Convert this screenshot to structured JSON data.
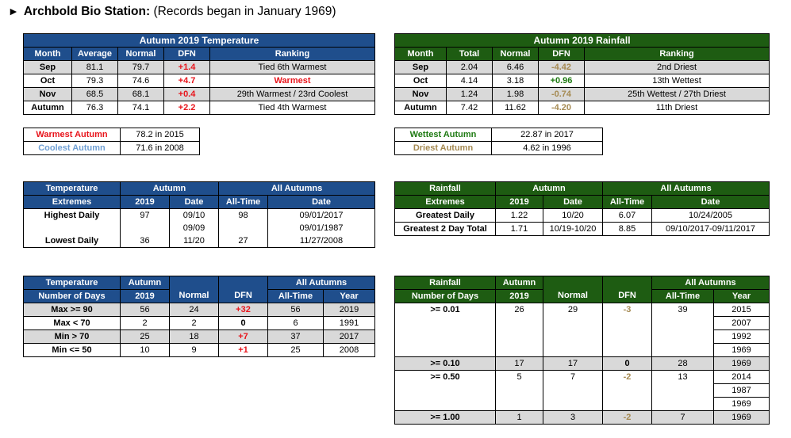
{
  "title": {
    "arrow": "►",
    "station": "Archbold Bio Station:",
    "note": "(Records began in January 1969)"
  },
  "temp_table": {
    "title": "Autumn 2019 Temperature",
    "headers": [
      "Month",
      "Average",
      "Normal",
      "DFN",
      "Ranking"
    ],
    "rows": [
      {
        "month": "Sep",
        "average": "81.1",
        "normal": "79.7",
        "dfn": "+1.4",
        "ranking": "Tied 6th Warmest"
      },
      {
        "month": "Oct",
        "average": "79.3",
        "normal": "74.6",
        "dfn": "+4.7",
        "ranking": "Warmest"
      },
      {
        "month": "Nov",
        "average": "68.5",
        "normal": "68.1",
        "dfn": "+0.4",
        "ranking": "29th Warmest / 23rd Coolest"
      },
      {
        "month": "Autumn",
        "average": "76.3",
        "normal": "74.1",
        "dfn": "+2.2",
        "ranking": "Tied 4th Warmest"
      }
    ]
  },
  "rain_table": {
    "title": "Autumn 2019 Rainfall",
    "headers": [
      "Month",
      "Total",
      "Normal",
      "DFN",
      "Ranking"
    ],
    "rows": [
      {
        "month": "Sep",
        "total": "2.04",
        "normal": "6.46",
        "dfn": "-4.42",
        "ranking": "2nd Driest"
      },
      {
        "month": "Oct",
        "total": "4.14",
        "normal": "3.18",
        "dfn": "+0.96",
        "ranking": "13th Wettest"
      },
      {
        "month": "Nov",
        "total": "1.24",
        "normal": "1.98",
        "dfn": "-0.74",
        "ranking": "25th Wettest / 27th Driest"
      },
      {
        "month": "Autumn",
        "total": "7.42",
        "normal": "11.62",
        "dfn": "-4.20",
        "ranking": "11th Driest"
      }
    ]
  },
  "temp_records": {
    "warmest_label": "Warmest Autumn",
    "warmest_value": "78.2 in 2015",
    "coolest_label": "Coolest Autumn",
    "coolest_value": "71.6 in 2008"
  },
  "rain_records": {
    "wettest_label": "Wettest Autumn",
    "wettest_value": "22.87 in 2017",
    "driest_label": "Driest Autumn",
    "driest_value": "4.62 in 1996"
  },
  "temp_extremes": {
    "h1": "Temperature",
    "h2": "Extremes",
    "autumn": "Autumn",
    "all_autumns": "All Autumns",
    "col_2019": "2019",
    "col_date": "Date",
    "col_alltime": "All-Time",
    "col_date2": "Date",
    "highest_label": "Highest Daily",
    "highest": {
      "val": "97",
      "date1": "09/10",
      "date2": "09/09",
      "alltime": "98",
      "ad1": "09/01/2017",
      "ad2": "09/01/1987"
    },
    "lowest_label": "Lowest Daily",
    "lowest": {
      "val": "36",
      "date": "11/20",
      "alltime": "27",
      "ad": "11/27/2008"
    }
  },
  "rain_extremes": {
    "h1": "Rainfall",
    "h2": "Extremes",
    "autumn": "Autumn",
    "all_autumns": "All Autumns",
    "col_2019": "2019",
    "col_date": "Date",
    "col_alltime": "All-Time",
    "col_date2": "Date",
    "rows": [
      {
        "label": "Greatest Daily",
        "val": "1.22",
        "date": "10/20",
        "alltime": "6.07",
        "adate": "10/24/2005"
      },
      {
        "label": "Greatest 2 Day Total",
        "val": "1.71",
        "date": "10/19-10/20",
        "alltime": "8.85",
        "adate": "09/10/2017-09/11/2017"
      }
    ]
  },
  "temp_days": {
    "h1": "Temperature",
    "h2": "Number of Days",
    "autumn": "Autumn",
    "col_2019": "2019",
    "col_normal": "Normal",
    "col_dfn": "DFN",
    "all_autumns": "All Autumns",
    "col_alltime": "All-Time",
    "col_year": "Year",
    "rows": [
      {
        "label": "Max >= 90",
        "val": "56",
        "normal": "24",
        "dfn": "+32",
        "alltime": "56",
        "year": "2019"
      },
      {
        "label": "Max < 70",
        "val": "2",
        "normal": "2",
        "dfn": "0",
        "alltime": "6",
        "year": "1991"
      },
      {
        "label": "Min > 70",
        "val": "25",
        "normal": "18",
        "dfn": "+7",
        "alltime": "37",
        "year": "2017"
      },
      {
        "label": "Min <= 50",
        "val": "10",
        "normal": "9",
        "dfn": "+1",
        "alltime": "25",
        "year": "2008"
      }
    ]
  },
  "rain_days": {
    "h1": "Rainfall",
    "h2": "Number of Days",
    "autumn": "Autumn",
    "col_2019": "2019",
    "col_normal": "Normal",
    "col_dfn": "DFN",
    "all_autumns": "All Autumns",
    "col_alltime": "All-Time",
    "col_year": "Year",
    "r1": {
      "label": ">= 0.01",
      "val": "26",
      "normal": "29",
      "dfn": "-3",
      "alltime": "39",
      "years": [
        "2015",
        "2007",
        "1992",
        "1969"
      ]
    },
    "r2": {
      "label": ">= 0.10",
      "val": "17",
      "normal": "17",
      "dfn": "0",
      "alltime": "28",
      "year": "1969"
    },
    "r3": {
      "label": ">= 0.50",
      "val": "5",
      "normal": "7",
      "dfn": "-2",
      "alltime": "13",
      "years": [
        "2014",
        "1987",
        "1969"
      ]
    },
    "r4": {
      "label": ">= 1.00",
      "val": "1",
      "normal": "3",
      "dfn": "-2",
      "alltime": "7",
      "year": "1969"
    }
  }
}
